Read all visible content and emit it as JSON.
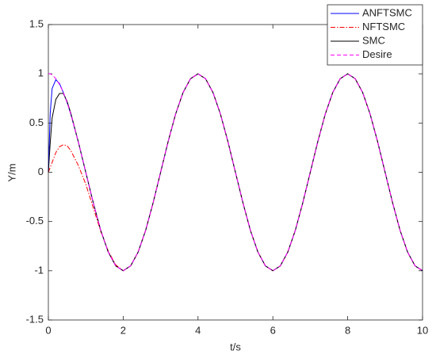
{
  "chart_data": {
    "type": "line",
    "xlabel": "t/s",
    "ylabel": "Y/m",
    "x": [
      0,
      0.05,
      0.1,
      0.2,
      0.3,
      0.4,
      0.5,
      0.6,
      0.8,
      1,
      1.2,
      1.4,
      1.6,
      1.8,
      2,
      2.2,
      2.4,
      2.6,
      2.8,
      3,
      3.2,
      3.4,
      3.6,
      3.8,
      4,
      4.2,
      4.4,
      4.6,
      4.8,
      5,
      5.2,
      5.4,
      5.6,
      5.8,
      6,
      6.2,
      6.4,
      6.6,
      6.8,
      7,
      7.2,
      7.4,
      7.6,
      7.8,
      8,
      8.2,
      8.4,
      8.6,
      8.8,
      9,
      9.2,
      9.4,
      9.6,
      9.8,
      10
    ],
    "series": [
      {
        "name": "ANFTSMC",
        "color": "#0000ff",
        "linestyle": "solid",
        "values": [
          0,
          0.6,
          0.85,
          0.94,
          0.9,
          0.81,
          0.71,
          0.59,
          0.31,
          0,
          -0.31,
          -0.59,
          -0.81,
          -0.95,
          -1,
          -0.95,
          -0.81,
          -0.59,
          -0.31,
          0,
          0.31,
          0.59,
          0.81,
          0.95,
          1,
          0.95,
          0.81,
          0.59,
          0.31,
          0,
          -0.31,
          -0.59,
          -0.81,
          -0.95,
          -1,
          -0.95,
          -0.81,
          -0.59,
          -0.31,
          0,
          0.31,
          0.59,
          0.81,
          0.95,
          1,
          0.95,
          0.81,
          0.59,
          0.31,
          0,
          -0.31,
          -0.59,
          -0.81,
          -0.95,
          -1
        ]
      },
      {
        "name": "NFTSMC",
        "color": "#ff0000",
        "linestyle": "dashdot",
        "values": [
          0,
          0.05,
          0.1,
          0.2,
          0.26,
          0.28,
          0.27,
          0.22,
          0.07,
          -0.12,
          -0.36,
          -0.6,
          -0.8,
          -0.94,
          -1,
          -0.95,
          -0.81,
          -0.59,
          -0.31,
          0,
          0.31,
          0.59,
          0.81,
          0.95,
          1,
          0.95,
          0.81,
          0.59,
          0.31,
          0,
          -0.31,
          -0.59,
          -0.81,
          -0.95,
          -1,
          -0.95,
          -0.81,
          -0.59,
          -0.31,
          0,
          0.31,
          0.59,
          0.81,
          0.95,
          1,
          0.95,
          0.81,
          0.59,
          0.31,
          0,
          -0.31,
          -0.59,
          -0.81,
          -0.95,
          -1
        ]
      },
      {
        "name": "SMC",
        "color": "#000000",
        "linestyle": "solid",
        "values": [
          0,
          0.3,
          0.55,
          0.74,
          0.8,
          0.8,
          0.72,
          0.6,
          0.31,
          0,
          -0.31,
          -0.59,
          -0.81,
          -0.95,
          -1,
          -0.95,
          -0.81,
          -0.59,
          -0.31,
          0,
          0.31,
          0.59,
          0.81,
          0.95,
          1,
          0.95,
          0.81,
          0.59,
          0.31,
          0,
          -0.31,
          -0.59,
          -0.81,
          -0.95,
          -1,
          -0.95,
          -0.81,
          -0.59,
          -0.31,
          0,
          0.31,
          0.59,
          0.81,
          0.95,
          1,
          0.95,
          0.81,
          0.59,
          0.31,
          0,
          -0.31,
          -0.59,
          -0.81,
          -0.95,
          -1
        ]
      },
      {
        "name": "Desire",
        "color": "#ff00ff",
        "linestyle": "dashed",
        "values": [
          1,
          1,
          0.99,
          0.95,
          0.89,
          0.81,
          0.71,
          0.59,
          0.31,
          0,
          -0.31,
          -0.59,
          -0.81,
          -0.95,
          -1,
          -0.95,
          -0.81,
          -0.59,
          -0.31,
          0,
          0.31,
          0.59,
          0.81,
          0.95,
          1,
          0.95,
          0.81,
          0.59,
          0.31,
          0,
          -0.31,
          -0.59,
          -0.81,
          -0.95,
          -1,
          -0.95,
          -0.81,
          -0.59,
          -0.31,
          0,
          0.31,
          0.59,
          0.81,
          0.95,
          1,
          0.95,
          0.81,
          0.59,
          0.31,
          0,
          -0.31,
          -0.59,
          -0.81,
          -0.95,
          -1
        ]
      }
    ],
    "xlim": [
      0,
      10
    ],
    "xticks": [
      0,
      2,
      4,
      6,
      8,
      10
    ],
    "ylim": [
      -1.5,
      1.5
    ],
    "yticks": [
      -1.5,
      -1,
      -0.5,
      0,
      0.5,
      1,
      1.5
    ],
    "grid": false,
    "legend": "top-right"
  }
}
